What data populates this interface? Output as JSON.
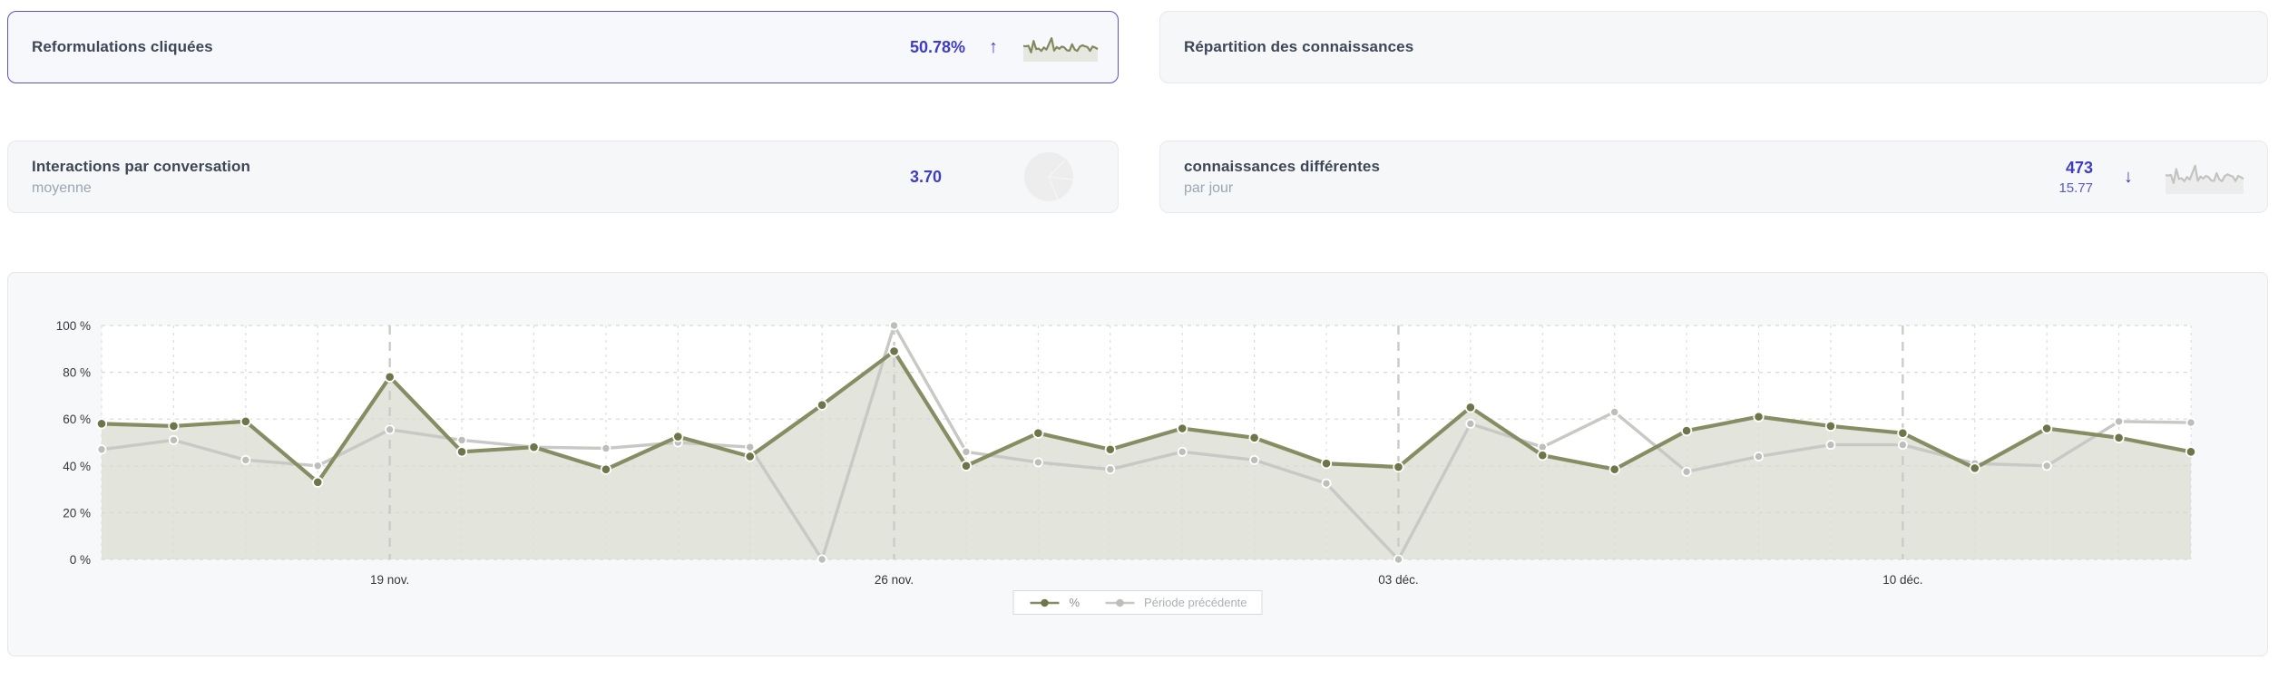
{
  "cards": {
    "reformulations": {
      "title": "Reformulations cliquées",
      "value": "50.78%",
      "trend": "up",
      "trend_icon": "↑",
      "selected": true,
      "sparkline_color": "#83895e",
      "sparkline_fill": "#e6e7e0"
    },
    "repartition": {
      "title": "Répartition des connaissances"
    },
    "interactions": {
      "title": "Interactions par conversation",
      "subtitle": "moyenne",
      "value": "3.70"
    },
    "connaissances": {
      "title": "connaissances différentes",
      "subtitle": "par jour",
      "value": "473",
      "secondary_value": "15.77",
      "trend": "down",
      "trend_icon": "↓",
      "sparkline_color": "#c2c4c0",
      "sparkline_fill": "#ececec"
    }
  },
  "colors": {
    "accent_indigo": "#3f3dc1",
    "card_border_selected": "#5a54c4",
    "title_text": "#3e4756",
    "subtitle_text": "#9aa6b2",
    "grid_minor": "#dcded9",
    "grid_major": "#c9ccc7",
    "grid_horizontal": "#d7d9d4",
    "plot_background": "#ffffff"
  },
  "chart_data": {
    "type": "area",
    "title": "",
    "xlabel": "",
    "ylabel": "",
    "ylim": [
      0,
      100
    ],
    "grid": true,
    "legend_position": "bottom-center",
    "y_ticks": [
      "0 %",
      "20 %",
      "40 %",
      "60 %",
      "80 %",
      "100 %"
    ],
    "x_tick_labels": [
      "19 nov.",
      "26 nov.",
      "03 déc.",
      "10 déc."
    ],
    "x_tick_indices": [
      4,
      11,
      18,
      25
    ],
    "series": [
      {
        "name": "%",
        "color": "#868d63",
        "dot_color": "#6e7548",
        "fill": "#e3e4db",
        "values": [
          58,
          57,
          59,
          33,
          78,
          46,
          48,
          38.5,
          52.5,
          44,
          66,
          89,
          40,
          54,
          47,
          56,
          52,
          41,
          39.5,
          65,
          44.5,
          38.5,
          55,
          61,
          57,
          54,
          39,
          56,
          52,
          46
        ]
      },
      {
        "name": "Période précédente",
        "color": "#c7c9c4",
        "dot_color": "#bcbeb9",
        "fill": "none",
        "values": [
          47,
          51,
          42.5,
          40,
          55.5,
          51,
          48,
          47.5,
          50,
          48,
          0,
          100,
          46,
          41.5,
          38.5,
          46,
          42.5,
          32.5,
          0,
          58,
          48,
          63,
          37.5,
          44,
          49,
          49,
          41,
          40,
          59,
          58.5
        ]
      }
    ]
  }
}
